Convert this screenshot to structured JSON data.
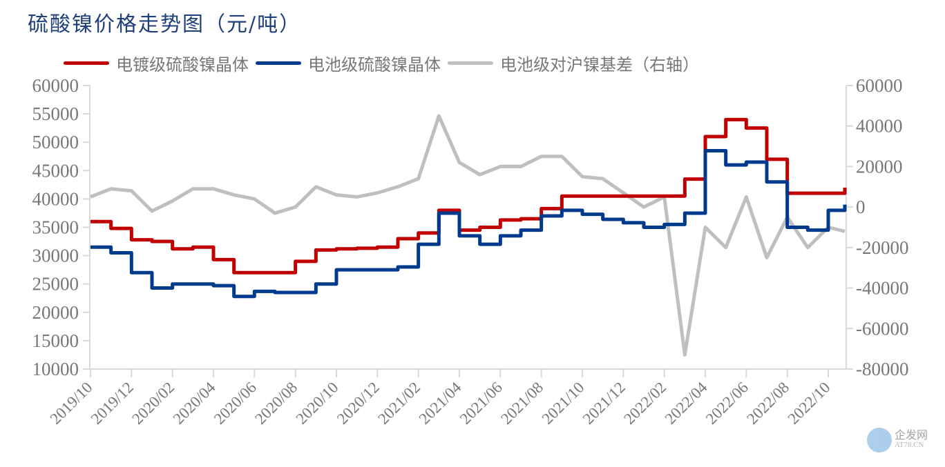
{
  "title": "硫酸镍价格走势图（元/吨）",
  "legend": [
    {
      "label": "电镀级硫酸镍晶体",
      "color": "#c00000"
    },
    {
      "label": "电池级硫酸镍晶体",
      "color": "#003a8c"
    },
    {
      "label": "电池级对沪镍基差（右轴）",
      "color": "#bfbfbf"
    }
  ],
  "watermark": {
    "cn": "企发网",
    "en": "AT78.CN"
  },
  "chart_data": {
    "type": "line",
    "title": "硫酸镍价格走势图（元/吨）",
    "xlabel": "",
    "ylabel": "元/吨",
    "ylim": [
      10000,
      60000
    ],
    "y2lim": [
      -80000,
      60000
    ],
    "grid": false,
    "legend_position": "top",
    "left_ticks": [
      "60000",
      "55000",
      "50000",
      "45000",
      "40000",
      "35000",
      "30000",
      "25000",
      "20000",
      "15000",
      "10000"
    ],
    "right_ticks": [
      "60000",
      "40000",
      "20000",
      "0",
      "-20000",
      "-40000",
      "-60000",
      "-80000"
    ],
    "x_ticks": [
      "2019/10",
      "2019/12",
      "2020/02",
      "2020/04",
      "2020/06",
      "2020/08",
      "2020/10",
      "2020/12",
      "2021/02",
      "2021/04",
      "2021/06",
      "2021/08",
      "2021/10",
      "2021/12",
      "2022/02",
      "2022/04",
      "2022/06",
      "2022/08",
      "2022/10"
    ],
    "x": [
      "2019/10",
      "2019/11",
      "2019/12",
      "2020/01",
      "2020/02",
      "2020/03",
      "2020/04",
      "2020/05",
      "2020/06",
      "2020/07",
      "2020/08",
      "2020/09",
      "2020/10",
      "2020/11",
      "2020/12",
      "2021/01",
      "2021/02",
      "2021/03",
      "2021/04",
      "2021/05",
      "2021/06",
      "2021/07",
      "2021/08",
      "2021/09",
      "2021/10",
      "2021/11",
      "2021/12",
      "2022/01",
      "2022/02",
      "2022/03",
      "2022/04",
      "2022/05",
      "2022/06",
      "2022/07",
      "2022/08",
      "2022/09",
      "2022/10",
      "2022/11"
    ],
    "series": [
      {
        "name": "电镀级硫酸镍晶体",
        "axis": "left",
        "color": "#c00000",
        "values": [
          36000,
          34800,
          32800,
          32500,
          31200,
          31500,
          29300,
          27000,
          27000,
          27000,
          29000,
          31000,
          31200,
          31300,
          31500,
          33000,
          34000,
          38000,
          34500,
          35000,
          36300,
          36500,
          38300,
          40500,
          40500,
          40500,
          40500,
          40500,
          40500,
          43500,
          51000,
          54000,
          52500,
          47000,
          41000,
          41000,
          41000,
          42000
        ]
      },
      {
        "name": "电池级硫酸镍晶体",
        "axis": "left",
        "color": "#003a8c",
        "values": [
          31500,
          30500,
          27000,
          24300,
          25000,
          25000,
          24700,
          22800,
          23700,
          23500,
          23500,
          25000,
          27500,
          27500,
          27500,
          28000,
          32000,
          37500,
          33500,
          32000,
          33500,
          34500,
          37000,
          38000,
          37300,
          36400,
          35800,
          35000,
          35500,
          37500,
          48500,
          46000,
          46500,
          43000,
          35000,
          34500,
          38000,
          39000
        ]
      },
      {
        "name": "电池级对沪镍基差（右轴）",
        "axis": "right",
        "color": "#bfbfbf",
        "values": [
          5000,
          9000,
          8000,
          -2000,
          3000,
          9000,
          9000,
          6000,
          4000,
          -3000,
          0,
          10000,
          6000,
          5000,
          7000,
          10000,
          14000,
          45000,
          22000,
          16000,
          20000,
          20000,
          25000,
          25000,
          15000,
          14000,
          7000,
          0,
          5000,
          -73000,
          -10000,
          -20000,
          5000,
          -25000,
          -5000,
          -20000,
          -10000,
          -12000
        ]
      }
    ]
  }
}
